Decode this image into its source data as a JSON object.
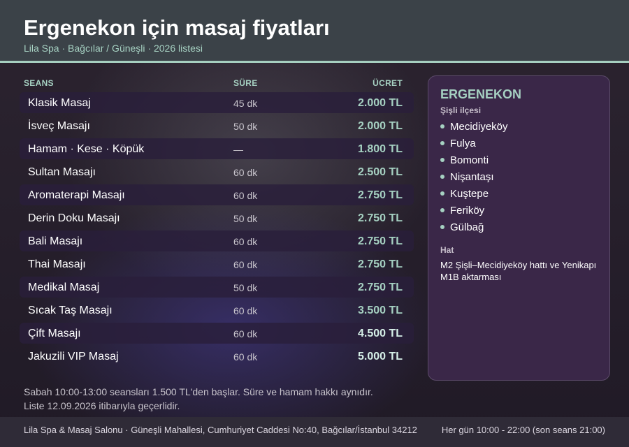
{
  "header": {
    "title": "Ergenekon için masaj fiyatları",
    "subtitle": "Lila Spa · Bağcılar / Güneşli · 2026 listesi"
  },
  "table": {
    "columns": {
      "seans": "SEANS",
      "sure": "SÜRE",
      "ucret": "ÜCRET"
    },
    "rows": [
      {
        "name": "Klasik Masaj",
        "duration": "45 dk",
        "price": "2.000 TL"
      },
      {
        "name": "İsveç Masajı",
        "duration": "50 dk",
        "price": "2.000 TL"
      },
      {
        "name": "Hamam · Kese · Köpük",
        "duration": "—",
        "price": "1.800 TL"
      },
      {
        "name": "Sultan Masajı",
        "duration": "60 dk",
        "price": "2.500 TL"
      },
      {
        "name": "Aromaterapi Masajı",
        "duration": "60 dk",
        "price": "2.750 TL"
      },
      {
        "name": "Derin Doku Masajı",
        "duration": "50 dk",
        "price": "2.750 TL"
      },
      {
        "name": "Bali Masajı",
        "duration": "60 dk",
        "price": "2.750 TL"
      },
      {
        "name": "Thai Masajı",
        "duration": "60 dk",
        "price": "2.750 TL"
      },
      {
        "name": "Medikal Masaj",
        "duration": "50 dk",
        "price": "2.750 TL"
      },
      {
        "name": "Sıcak Taş Masajı",
        "duration": "60 dk",
        "price": "3.500 TL"
      },
      {
        "name": "Çift Masajı",
        "duration": "60 dk",
        "price": "4.500 TL"
      },
      {
        "name": "Jakuzili VIP Masaj",
        "duration": "60 dk",
        "price": "5.000 TL"
      }
    ]
  },
  "panel": {
    "title": "ERGENEKON",
    "subtitle": "Şişli ilçesi",
    "neighborhoods": [
      "Mecidiyeköy",
      "Fulya",
      "Bomonti",
      "Nişantaşı",
      "Kuştepe",
      "Feriköy",
      "Gülbağ"
    ],
    "line_label": "Hat",
    "line_text": "M2 Şişli–Mecidiyeköy hattı ve Yenikapı M1B aktarması"
  },
  "notes": {
    "line1": "Sabah 10:00-13:00 seansları 1.500 TL'den başlar. Süre ve hamam hakkı aynıdır.",
    "line2": "Liste 12.09.2026 itibarıyla geçerlidir."
  },
  "footer": {
    "address": "Lila Spa & Masaj Salonu · Güneşli Mahallesi, Cumhuriyet Caddesi No:40, Bağcılar/İstanbul 34212",
    "hours": "Her gün 10:00 - 22:00 (son seans 21:00)"
  },
  "colors": {
    "accent": "#a6d1c2",
    "header_bg": "#3b4248",
    "panel_bg": "#3a2748",
    "footer_bg": "#2f2b37"
  }
}
